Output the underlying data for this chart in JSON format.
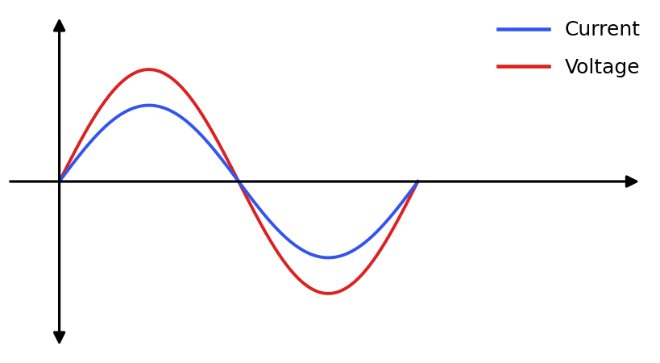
{
  "background_color": "#ffffff",
  "current_color": "#3355ee",
  "voltage_color": "#dd2020",
  "current_amplitude": 0.68,
  "voltage_amplitude": 1.0,
  "legend_labels": [
    "Current",
    "Voltage"
  ],
  "legend_colors": [
    "#3355ee",
    "#dd2020"
  ],
  "legend_fontsize": 18,
  "line_width": 2.8,
  "figsize": [
    8.2,
    4.5
  ],
  "dpi": 100,
  "xlim": [
    -1.0,
    10.5
  ],
  "ylim": [
    -1.6,
    1.6
  ],
  "wave_period": 6.2831853,
  "x_axis_start": -0.9,
  "x_axis_end": 10.2,
  "y_axis_top": 1.48,
  "y_axis_bottom": -1.48
}
